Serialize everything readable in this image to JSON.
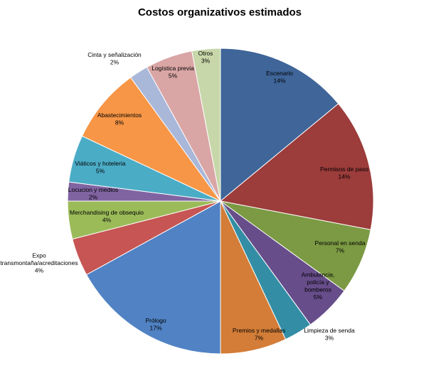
{
  "chart_data": {
    "type": "pie",
    "title": "Costos organizativos estimados",
    "slices": [
      {
        "label": [
          "Escenario"
        ],
        "pct": "14%",
        "value": 14,
        "color": "#3f6599"
      },
      {
        "label": [
          "Permisos de paso"
        ],
        "pct": "14%",
        "value": 14,
        "color": "#9c3c3b"
      },
      {
        "label": [
          "Personal en senda"
        ],
        "pct": "7%",
        "value": 7,
        "color": "#7b9a43"
      },
      {
        "label": [
          "Ambulancia,",
          "policía y",
          "bomberos"
        ],
        "pct": "5%",
        "value": 5,
        "color": "#674d8a"
      },
      {
        "label": [
          "Limpieza de senda"
        ],
        "pct": "3%",
        "value": 3,
        "color": "#338ea5"
      },
      {
        "label": [
          "Premios y medallas"
        ],
        "pct": "7%",
        "value": 7,
        "color": "#d37d38"
      },
      {
        "label": [
          "Prólogo"
        ],
        "pct": "17%",
        "value": 17,
        "color": "#5082c4"
      },
      {
        "label": [
          "Expo",
          "transmontaña/acreditaciones"
        ],
        "pct": "4%",
        "value": 4,
        "color": "#c65553"
      },
      {
        "label": [
          "Merchandising de obsequio"
        ],
        "pct": "4%",
        "value": 4,
        "color": "#9bbb59"
      },
      {
        "label": [
          "Locucion y medios"
        ],
        "pct": "2%",
        "value": 2,
        "color": "#8064a2"
      },
      {
        "label": [
          "Viáticos y hoteleria"
        ],
        "pct": "5%",
        "value": 5,
        "color": "#4bacc6"
      },
      {
        "label": [
          "Abastecimientos"
        ],
        "pct": "8%",
        "value": 8,
        "color": "#f79646"
      },
      {
        "label": [
          "Cinta y señalización"
        ],
        "pct": "2%",
        "value": 2,
        "color": "#a9b8d9"
      },
      {
        "label": [
          "Logística previa"
        ],
        "pct": "5%",
        "value": 5,
        "color": "#d9a6a5"
      },
      {
        "label": [
          "Otros"
        ],
        "pct": "3%",
        "value": 3,
        "color": "#c7d7a9"
      }
    ]
  }
}
